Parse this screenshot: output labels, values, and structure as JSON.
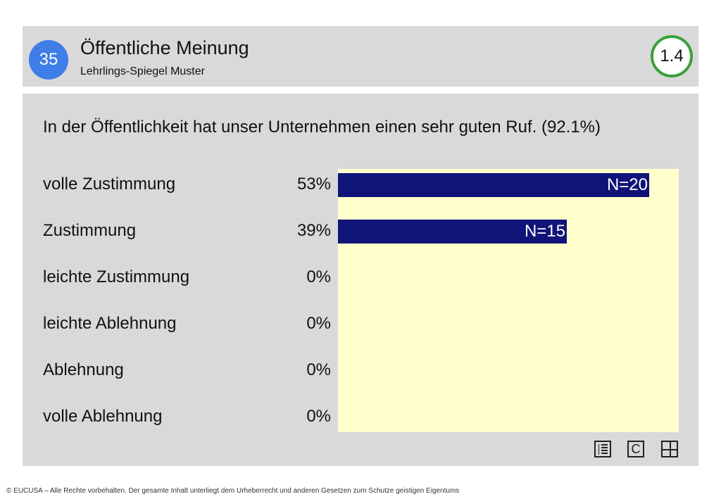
{
  "header": {
    "page_number": "35",
    "title": "Öffentliche Meinung",
    "subtitle": "Lehrlings-Spiegel Muster",
    "section": "1.4"
  },
  "chart_data": {
    "type": "bar",
    "orientation": "horizontal",
    "title": "In der Öffentlichkeit hat unser Unternehmen einen sehr guten Ruf. (92.1%)",
    "categories": [
      "volle Zustimmung",
      "Zustimmung",
      "leichte Zustimmung",
      "leichte Ablehnung",
      "Ablehnung",
      "volle Ablehnung"
    ],
    "values": [
      53,
      39,
      0,
      0,
      0,
      0
    ],
    "value_labels": [
      "53%",
      "39%",
      "0%",
      "0%",
      "0%",
      "0%"
    ],
    "counts": [
      "N=20",
      "N=15",
      "",
      "",
      "",
      ""
    ],
    "xlim": [
      0,
      58
    ],
    "bar_color": "#101479",
    "plot_background": "#ffffcc"
  },
  "toolbar": {
    "icons": [
      "list-icon",
      "c-icon",
      "grid-icon"
    ],
    "c_label": "C"
  },
  "footer": {
    "text": "© EUCUSA – Alle Rechte vorbehalten. Der gesamte Inhalt unterliegt dem Urheberrecht und anderen Gesetzen zum Schutze geistigen Eigentums"
  }
}
